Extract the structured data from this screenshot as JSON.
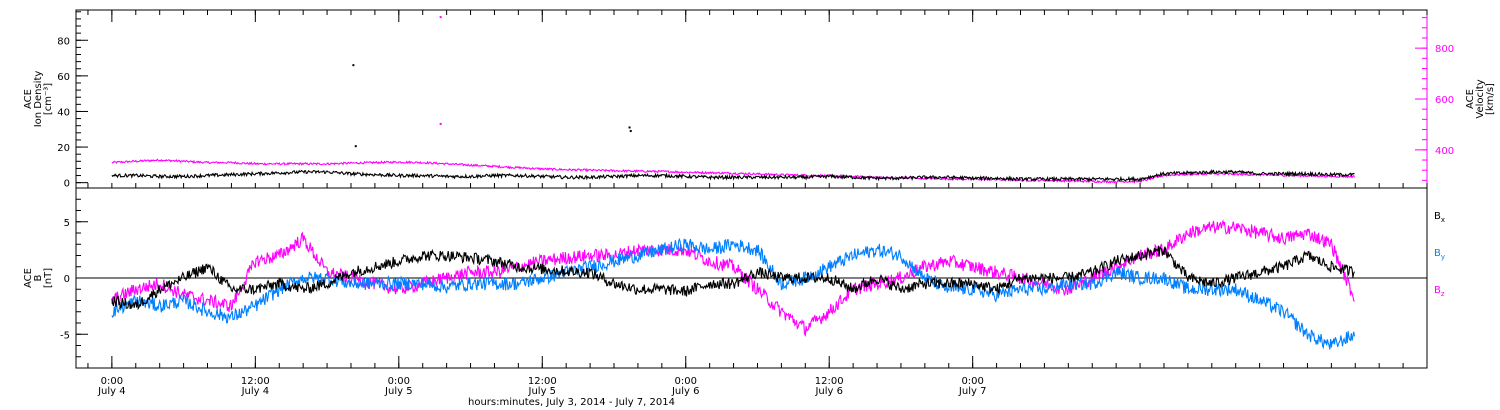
{
  "chart_data": [
    {
      "type": "line",
      "panel": "top",
      "ylabel": [
        "ACE",
        "Ion Density",
        "[cm⁻³]"
      ],
      "ylim": [
        -3,
        97
      ],
      "yticks": [
        0,
        20,
        40,
        60,
        80
      ],
      "y2label": [
        "ACE",
        "Velocity",
        "[km/s]"
      ],
      "y2lim": [
        250,
        950
      ],
      "y2ticks": [
        400,
        600,
        800
      ],
      "y2_color": "#ff00ff",
      "series": [
        {
          "axis": "left",
          "color": "#000000",
          "x": [
            0,
            2,
            4,
            6,
            8,
            10,
            12,
            14,
            16,
            18,
            20,
            22,
            24,
            26,
            28,
            30,
            32,
            34,
            36,
            38,
            40,
            42,
            44,
            46,
            48,
            50,
            52,
            54,
            56,
            58,
            60,
            62,
            64,
            66,
            68,
            70,
            72,
            74,
            76,
            78,
            80,
            82,
            84,
            86,
            88,
            90,
            92,
            94,
            96,
            98,
            100,
            102,
            104
          ],
          "values": [
            4,
            4,
            3.5,
            3.5,
            4,
            4.5,
            5,
            5.5,
            6,
            6,
            5,
            4.5,
            4,
            4,
            3.5,
            3.5,
            4,
            4,
            3.5,
            3,
            3,
            3.5,
            4,
            4,
            3.5,
            3,
            3,
            3,
            3,
            3,
            3.5,
            3,
            2.5,
            2.5,
            3,
            3,
            2.5,
            2.5,
            2,
            2,
            2,
            2,
            2,
            2,
            5,
            5.5,
            6,
            6,
            5,
            5,
            5,
            4.5,
            4.5
          ]
        },
        {
          "axis": "right",
          "color": "#ff00ff",
          "x": [
            0,
            2,
            4,
            6,
            8,
            10,
            12,
            14,
            16,
            18,
            20,
            22,
            24,
            26,
            28,
            30,
            32,
            34,
            36,
            38,
            40,
            42,
            44,
            46,
            48,
            50,
            52,
            54,
            56,
            58,
            60,
            62,
            64,
            66,
            68,
            70,
            72,
            74,
            76,
            78,
            80,
            82,
            84,
            86,
            88,
            90,
            92,
            94,
            96,
            98,
            100,
            102,
            104
          ],
          "values": [
            350,
            355,
            360,
            355,
            350,
            350,
            345,
            345,
            345,
            345,
            348,
            350,
            352,
            350,
            345,
            340,
            335,
            330,
            325,
            322,
            320,
            318,
            316,
            315,
            312,
            310,
            308,
            305,
            302,
            300,
            298,
            295,
            292,
            290,
            288,
            286,
            285,
            283,
            281,
            280,
            278,
            276,
            275,
            276,
            300,
            304,
            306,
            304,
            302,
            300,
            298,
            296,
            295
          ]
        }
      ],
      "sparse_points": [
        {
          "x": 20.2,
          "y": 66,
          "color": "#000000"
        },
        {
          "x": 20.4,
          "y": 20.5,
          "color": "#000000"
        },
        {
          "x": 43.3,
          "y": 31,
          "color": "#000000"
        },
        {
          "x": 43.4,
          "y": 29,
          "color": "#000000"
        },
        {
          "x": 27.5,
          "y": 93,
          "color": "#ff00ff"
        },
        {
          "x": 27.5,
          "y": 33,
          "color": "#ff00ff"
        }
      ]
    },
    {
      "type": "line",
      "panel": "bottom",
      "ylabel": [
        "ACE",
        "B",
        "[nT]"
      ],
      "ylim": [
        -8,
        8
      ],
      "yticks": [
        -5,
        0,
        5
      ],
      "zero_line": true,
      "series": [
        {
          "name": "Bx",
          "color": "#000000",
          "x": [
            0,
            2,
            4,
            6,
            8,
            10,
            12,
            14,
            16,
            18,
            20,
            22,
            24,
            26,
            28,
            30,
            32,
            34,
            36,
            38,
            40,
            42,
            44,
            46,
            48,
            50,
            52,
            54,
            56,
            58,
            60,
            62,
            64,
            66,
            68,
            70,
            72,
            74,
            76,
            78,
            80,
            82,
            84,
            86,
            88,
            90,
            92,
            94,
            96,
            98,
            100,
            102,
            104
          ],
          "values": [
            -2,
            -2.5,
            -1,
            0,
            1,
            -1,
            -1,
            -0.5,
            -1,
            -0.5,
            0.5,
            1,
            1.5,
            2,
            2,
            1.8,
            1.5,
            1,
            0.8,
            0.6,
            0.5,
            -0.5,
            -1,
            -1,
            -1.2,
            -0.5,
            -0.5,
            0.5,
            0,
            0,
            0,
            -1,
            0,
            -1,
            -0.5,
            -0.5,
            -0.5,
            -1,
            0,
            0,
            0,
            0.5,
            1.5,
            2,
            2.5,
            0,
            -0.5,
            0,
            0.5,
            1,
            2,
            1,
            0.5
          ]
        },
        {
          "name": "By",
          "color": "#0080ff",
          "x": [
            0,
            2,
            4,
            6,
            8,
            10,
            12,
            14,
            16,
            18,
            20,
            22,
            24,
            26,
            28,
            30,
            32,
            34,
            36,
            38,
            40,
            42,
            44,
            46,
            48,
            50,
            52,
            54,
            56,
            58,
            60,
            62,
            64,
            66,
            68,
            70,
            72,
            74,
            76,
            78,
            80,
            82,
            84,
            86,
            88,
            90,
            92,
            94,
            96,
            98,
            100,
            102,
            104
          ],
          "values": [
            -3,
            -2,
            -2.5,
            -2,
            -3,
            -3.5,
            -2.5,
            -1,
            0,
            0,
            -0.5,
            -0.5,
            -0.5,
            -0.5,
            -0.8,
            -0.5,
            -0.5,
            -0.5,
            0,
            0.5,
            1,
            1.5,
            2,
            2.5,
            3,
            2.5,
            3,
            2.5,
            -0.5,
            0,
            1,
            2,
            2.5,
            2,
            0,
            -1,
            -1,
            -1.5,
            -1,
            -1,
            -0.5,
            -0.5,
            0.5,
            0,
            0,
            -1,
            -1,
            -1,
            -2,
            -3,
            -5,
            -6,
            -5
          ]
        },
        {
          "name": "Bz",
          "color": "#ff00ff",
          "x": [
            0,
            2,
            4,
            6,
            8,
            10,
            12,
            14,
            16,
            18,
            20,
            22,
            24,
            26,
            28,
            30,
            32,
            34,
            36,
            38,
            40,
            42,
            44,
            46,
            48,
            50,
            52,
            54,
            56,
            58,
            60,
            62,
            64,
            66,
            68,
            70,
            72,
            74,
            76,
            78,
            80,
            82,
            84,
            86,
            88,
            90,
            92,
            94,
            96,
            98,
            100,
            102,
            104
          ],
          "values": [
            -2,
            -1,
            -0.5,
            -1.5,
            -2,
            -2.5,
            1.5,
            2,
            3.5,
            0.5,
            0,
            -0.5,
            -1,
            -0.5,
            0,
            0.5,
            0.5,
            1,
            1.5,
            1.8,
            2,
            2,
            2.5,
            2.5,
            2.5,
            1.5,
            1,
            -1,
            -3,
            -4.5,
            -3,
            -1,
            -0.5,
            0,
            1,
            1.5,
            1,
            0.5,
            0,
            -0.5,
            -1,
            0,
            1,
            2,
            2.5,
            4,
            4.5,
            4.5,
            4,
            3.5,
            4,
            3,
            -2
          ]
        }
      ],
      "legend": [
        "Bx",
        "By",
        "Bz"
      ],
      "legend_placement": "right"
    }
  ],
  "x_axis": {
    "xlim": [
      -3,
      110
    ],
    "ticks": [
      {
        "x": 0,
        "time": "0:00",
        "date": "July 4"
      },
      {
        "x": 12,
        "time": "12:00",
        "date": "July 4"
      },
      {
        "x": 24,
        "time": "0:00",
        "date": "July 5"
      },
      {
        "x": 36,
        "time": "12:00",
        "date": "July 5"
      },
      {
        "x": 48,
        "time": "0:00",
        "date": "July 6"
      },
      {
        "x": 60,
        "time": "12:00",
        "date": "July 6"
      },
      {
        "x": 72,
        "time": "0:00",
        "date": "July 7"
      }
    ],
    "label": "hours:minutes, July  3, 2014 - July  7, 2014"
  }
}
